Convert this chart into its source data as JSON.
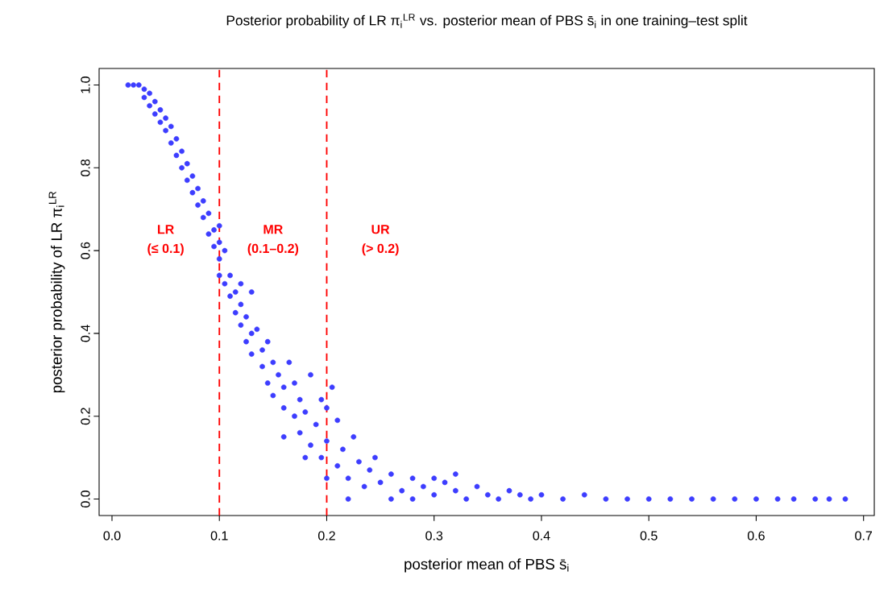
{
  "chart_data": {
    "type": "scatter",
    "title": "Posterior probability of LR π$_{i}$$^{LR}$ vs. posterior mean of PBS s̄$_{i}$ in one training–test split",
    "xlabel": "posterior mean of PBS s̄$_{i}$",
    "ylabel": "posterior probability of LR π$_{i}$$^{LR}$",
    "xlim": [
      -0.012,
      0.71
    ],
    "ylim": [
      -0.04,
      1.04
    ],
    "xticks": [
      {
        "value": 0,
        "label": "0.0"
      },
      0.1,
      0.2,
      0.3,
      0.4,
      0.5,
      0.6,
      0.7
    ],
    "yticks": [
      {
        "value": 0,
        "label": "0.0"
      },
      0.2,
      0.4,
      0.6,
      0.8,
      {
        "value": 1,
        "label": "1.0"
      }
    ],
    "grid": false,
    "series": [
      {
        "color": "#3d3dff",
        "x": [
          0.015,
          0.02,
          0.025,
          0.03,
          0.03,
          0.035,
          0.035,
          0.04,
          0.04,
          0.045,
          0.045,
          0.05,
          0.05,
          0.055,
          0.055,
          0.06,
          0.06,
          0.065,
          0.065,
          0.07,
          0.07,
          0.075,
          0.075,
          0.08,
          0.08,
          0.085,
          0.085,
          0.09,
          0.09,
          0.095,
          0.095,
          0.1,
          0.1,
          0.105,
          0.1,
          0.105,
          0.11,
          0.11,
          0.115,
          0.12,
          0.115,
          0.12,
          0.125,
          0.13,
          0.125,
          0.135,
          0.13,
          0.14,
          0.14,
          0.145,
          0.15,
          0.145,
          0.155,
          0.15,
          0.16,
          0.16,
          0.165,
          0.17,
          0.17,
          0.175,
          0.175,
          0.18,
          0.185,
          0.185,
          0.19,
          0.195,
          0.195,
          0.2,
          0.2,
          0.205,
          0.21,
          0.21,
          0.215,
          0.22,
          0.225,
          0.23,
          0.235,
          0.24,
          0.245,
          0.25,
          0.26,
          0.26,
          0.27,
          0.28,
          0.28,
          0.29,
          0.3,
          0.31,
          0.32,
          0.33,
          0.34,
          0.35,
          0.36,
          0.37,
          0.38,
          0.39,
          0.4,
          0.42,
          0.44,
          0.46,
          0.48,
          0.5,
          0.52,
          0.54,
          0.56,
          0.58,
          0.6,
          0.62,
          0.635,
          0.655,
          0.668,
          0.683,
          0.1,
          0.12,
          0.13,
          0.16,
          0.18,
          0.2,
          0.22,
          0.3,
          0.32
        ],
        "values": [
          1.0,
          1.0,
          1.0,
          0.99,
          0.97,
          0.98,
          0.95,
          0.96,
          0.93,
          0.94,
          0.91,
          0.92,
          0.89,
          0.9,
          0.86,
          0.87,
          0.83,
          0.84,
          0.8,
          0.81,
          0.77,
          0.78,
          0.74,
          0.75,
          0.71,
          0.72,
          0.68,
          0.69,
          0.64,
          0.65,
          0.61,
          0.62,
          0.58,
          0.6,
          0.54,
          0.52,
          0.54,
          0.49,
          0.5,
          0.47,
          0.45,
          0.42,
          0.44,
          0.4,
          0.38,
          0.41,
          0.35,
          0.36,
          0.32,
          0.38,
          0.33,
          0.28,
          0.3,
          0.25,
          0.27,
          0.22,
          0.33,
          0.28,
          0.2,
          0.24,
          0.16,
          0.21,
          0.3,
          0.13,
          0.18,
          0.24,
          0.1,
          0.14,
          0.05,
          0.27,
          0.19,
          0.08,
          0.12,
          0.05,
          0.15,
          0.09,
          0.03,
          0.07,
          0.1,
          0.04,
          0.0,
          0.06,
          0.02,
          0.05,
          0.0,
          0.03,
          0.01,
          0.04,
          0.02,
          0.0,
          0.03,
          0.01,
          0.0,
          0.02,
          0.01,
          0.0,
          0.01,
          0.0,
          0.01,
          0.0,
          0.0,
          0.0,
          0.0,
          0.0,
          0.0,
          0.0,
          0.0,
          0.0,
          0.0,
          0.0,
          0.0,
          0.0,
          0.66,
          0.52,
          0.5,
          0.15,
          0.1,
          0.22,
          0.0,
          0.05,
          0.06
        ]
      }
    ],
    "ref_lines": [
      {
        "axis": "x",
        "value": 0.1,
        "color": "#ff0000",
        "line_style": "dashed"
      },
      {
        "axis": "x",
        "value": 0.2,
        "color": "#ff0000",
        "line_style": "dashed"
      }
    ],
    "annotations": [
      "LR",
      "(≤ 0.1)",
      "MR",
      "(0.1–0.2)",
      "UR",
      "(> 0.2)"
    ]
  }
}
